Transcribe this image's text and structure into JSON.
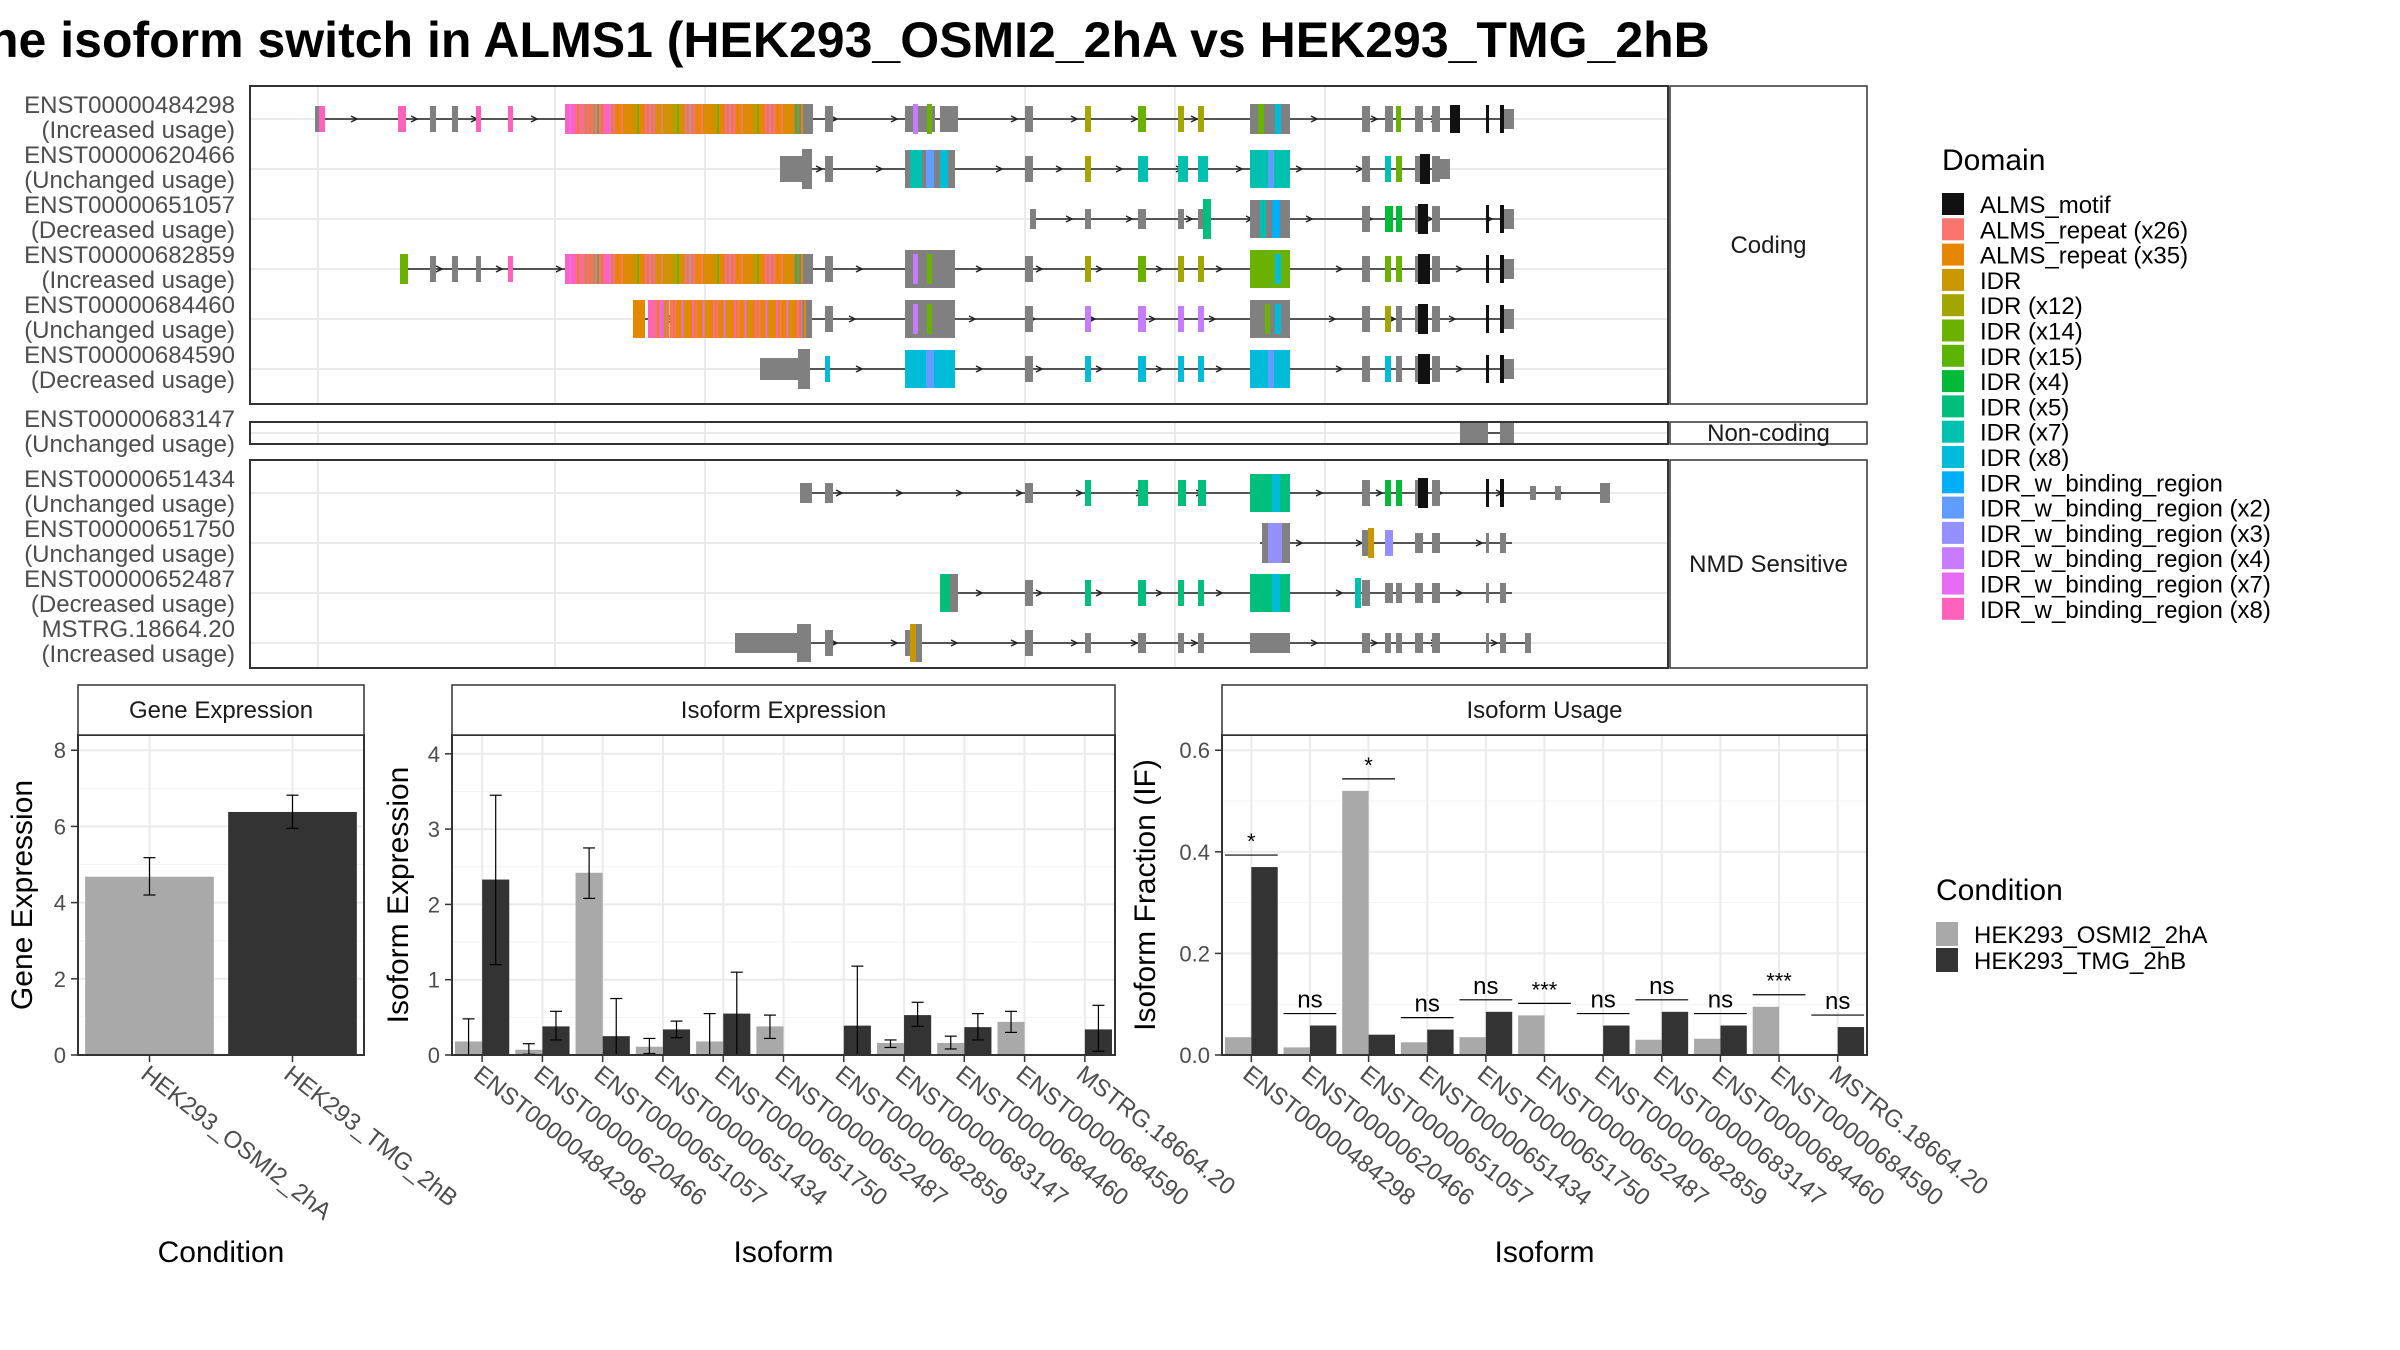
{
  "title": "he isoform switch in ALMS1 (HEK293_OSMI2_2hA vs HEK293_TMG_2hB",
  "structure": {
    "groups": [
      {
        "label": "Coding",
        "isoforms": [
          {
            "id": "ENST00000484298",
            "usage": "(Increased usage)"
          },
          {
            "id": "ENST00000620466",
            "usage": "(Unchanged usage)"
          },
          {
            "id": "ENST00000651057",
            "usage": "(Decreased usage)"
          },
          {
            "id": "ENST00000682859",
            "usage": "(Increased usage)"
          },
          {
            "id": "ENST00000684460",
            "usage": "(Unchanged usage)"
          },
          {
            "id": "ENST00000684590",
            "usage": "(Decreased usage)"
          }
        ]
      },
      {
        "label": "Non-coding",
        "isoforms": [
          {
            "id": "ENST00000683147",
            "usage": "(Unchanged usage)"
          }
        ]
      },
      {
        "label": "NMD Sensitive",
        "isoforms": [
          {
            "id": "ENST00000651434",
            "usage": "(Unchanged usage)"
          },
          {
            "id": "ENST00000651750",
            "usage": "(Unchanged usage)"
          },
          {
            "id": "ENST00000652487",
            "usage": "(Decreased usage)"
          },
          {
            "id": "MSTRG.18664.20",
            "usage": "(Increased usage)"
          }
        ]
      }
    ]
  },
  "domain_legend": {
    "title": "Domain",
    "items": [
      {
        "label": "ALMS_motif",
        "color": "#111111"
      },
      {
        "label": "ALMS_repeat (x26)",
        "color": "#f8766d"
      },
      {
        "label": "ALMS_repeat (x35)",
        "color": "#e58700"
      },
      {
        "label": "IDR",
        "color": "#c99800"
      },
      {
        "label": "IDR (x12)",
        "color": "#a3a500"
      },
      {
        "label": "IDR (x14)",
        "color": "#6bb100"
      },
      {
        "label": "IDR (x15)",
        "color": "#5cb300"
      },
      {
        "label": "IDR (x4)",
        "color": "#00ba38"
      },
      {
        "label": "IDR (x5)",
        "color": "#00bf7d"
      },
      {
        "label": "IDR (x7)",
        "color": "#00c0af"
      },
      {
        "label": "IDR (x8)",
        "color": "#00bcd8"
      },
      {
        "label": "IDR_w_binding_region",
        "color": "#00b0f6"
      },
      {
        "label": "IDR_w_binding_region (x2)",
        "color": "#619cff"
      },
      {
        "label": "IDR_w_binding_region (x3)",
        "color": "#9590ff"
      },
      {
        "label": "IDR_w_binding_region (x4)",
        "color": "#c77cff"
      },
      {
        "label": "IDR_w_binding_region (x7)",
        "color": "#e76bf3"
      },
      {
        "label": "IDR_w_binding_region (x8)",
        "color": "#ff62bc"
      }
    ]
  },
  "condition_legend": {
    "title": "Condition",
    "items": [
      {
        "label": "HEK293_OSMI2_2hA",
        "color": "#a9a9a9"
      },
      {
        "label": "HEK293_TMG_2hB",
        "color": "#333333"
      }
    ]
  },
  "chart_data": [
    {
      "type": "bar",
      "title": "Gene Expression",
      "xlabel": "Condition",
      "ylabel": "Gene Expression",
      "ylim": [
        0,
        8.4
      ],
      "yticks": [
        0,
        2,
        4,
        6,
        8
      ],
      "categories": [
        "HEK293_OSMI2_2hA",
        "HEK293_TMG_2hB"
      ],
      "values": [
        4.68,
        6.38
      ],
      "errors": [
        [
          4.2,
          5.18
        ],
        [
          5.95,
          6.82
        ]
      ],
      "colors": [
        "#a9a9a9",
        "#333333"
      ],
      "grid": true
    },
    {
      "type": "bar",
      "title": "Isoform Expression",
      "xlabel": "Isoform",
      "ylabel": "Isoform Expression",
      "ylim": [
        0,
        4.25
      ],
      "yticks": [
        0,
        1,
        2,
        3,
        4
      ],
      "categories": [
        "ENST00000484298",
        "ENST00000620466",
        "ENST00000651057",
        "ENST00000651434",
        "ENST00000651750",
        "ENST00000652487",
        "ENST00000682859",
        "ENST00000683147",
        "ENST00000684460",
        "ENST00000684590",
        "MSTRG.18664.20"
      ],
      "series": [
        {
          "name": "HEK293_OSMI2_2hA",
          "values": [
            0.18,
            0.07,
            2.42,
            0.11,
            0.18,
            0.38,
            0.0,
            0.16,
            0.16,
            0.44,
            0.0
          ],
          "errors": [
            [
              0.0,
              0.48
            ],
            [
              0.01,
              0.15
            ],
            [
              2.08,
              2.75
            ],
            [
              0.02,
              0.22
            ],
            [
              0.0,
              0.55
            ],
            [
              0.22,
              0.53
            ],
            [
              0.0,
              0.0
            ],
            [
              0.1,
              0.2
            ],
            [
              0.08,
              0.25
            ],
            [
              0.3,
              0.58
            ],
            [
              0.0,
              0.0
            ]
          ]
        },
        {
          "name": "HEK293_TMG_2hB",
          "values": [
            2.33,
            0.38,
            0.25,
            0.34,
            0.55,
            0.0,
            0.39,
            0.53,
            0.37,
            0.0,
            0.34
          ],
          "errors": [
            [
              1.2,
              3.45
            ],
            [
              0.2,
              0.58
            ],
            [
              0.0,
              0.75
            ],
            [
              0.23,
              0.45
            ],
            [
              0.0,
              1.1
            ],
            [
              0.0,
              0.0
            ],
            [
              0.0,
              1.18
            ],
            [
              0.38,
              0.7
            ],
            [
              0.2,
              0.55
            ],
            [
              0.0,
              0.0
            ],
            [
              0.05,
              0.66
            ]
          ]
        }
      ],
      "grid": true
    },
    {
      "type": "bar",
      "title": "Isoform Usage",
      "xlabel": "Isoform",
      "ylabel": "Isoform Fraction (IF)",
      "ylim": [
        0,
        0.63
      ],
      "yticks": [
        0.0,
        0.2,
        0.4,
        0.6
      ],
      "categories": [
        "ENST00000484298",
        "ENST00000620466",
        "ENST00000651057",
        "ENST00000651434",
        "ENST00000651750",
        "ENST00000652487",
        "ENST00000682859",
        "ENST00000683147",
        "ENST00000684460",
        "ENST00000684590",
        "MSTRG.18664.20"
      ],
      "series": [
        {
          "name": "HEK293_OSMI2_2hA",
          "values": [
            0.035,
            0.015,
            0.52,
            0.025,
            0.035,
            0.078,
            0.0,
            0.03,
            0.032,
            0.095,
            0.002
          ]
        },
        {
          "name": "HEK293_TMG_2hB",
          "values": [
            0.37,
            0.058,
            0.04,
            0.05,
            0.085,
            0.0,
            0.058,
            0.085,
            0.058,
            0.0,
            0.055
          ]
        }
      ],
      "significance": [
        "*",
        "ns",
        "*",
        "ns",
        "ns",
        "***",
        "ns",
        "ns",
        "ns",
        "***",
        "ns"
      ],
      "grid": true
    }
  ]
}
